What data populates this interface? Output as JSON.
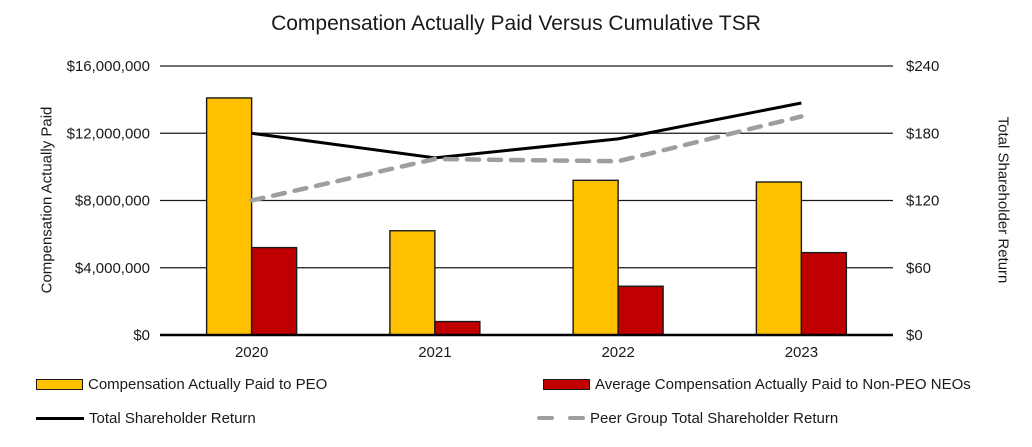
{
  "title": "Compensation Actually Paid Versus Cumulative TSR",
  "chart_data": {
    "type": "combo-bar-line",
    "title": "Compensation Actually Paid Versus Cumulative TSR",
    "categories": [
      "2020",
      "2021",
      "2022",
      "2023"
    ],
    "bar_series": [
      {
        "name": "Compensation Actually Paid to PEO",
        "color": "#FFC000",
        "border_color": "#1a1a1a",
        "axis": "left",
        "values": [
          14100000,
          6200000,
          9200000,
          9100000
        ]
      },
      {
        "name": "Average Compensation Actually Paid to Non-PEO NEOs",
        "color": "#C00000",
        "border_color": "#1a1a1a",
        "axis": "left",
        "values": [
          5200000,
          800000,
          2900000,
          4900000
        ]
      }
    ],
    "line_series": [
      {
        "name": "Total Shareholder Return",
        "color": "#000000",
        "dash": "solid",
        "axis": "right",
        "values": [
          180,
          158,
          175,
          207
        ]
      },
      {
        "name": "Peer Group Total Shareholder Return",
        "color": "#9E9E9E",
        "dash": "dashed",
        "axis": "right",
        "values": [
          120,
          157,
          155,
          195
        ]
      }
    ],
    "left_axis": {
      "title": "Compensation Actually Paid",
      "min": 0,
      "max": 16000000,
      "ticks": [
        "$0",
        "$4,000,000",
        "$8,000,000",
        "$12,000,000",
        "$16,000,000"
      ]
    },
    "right_axis": {
      "title": "Total Shareholder Return",
      "min": 0,
      "max": 240,
      "ticks": [
        "$0",
        "$60",
        "$120",
        "$180",
        "$240"
      ]
    },
    "grid": true,
    "legend_position": "bottom"
  }
}
